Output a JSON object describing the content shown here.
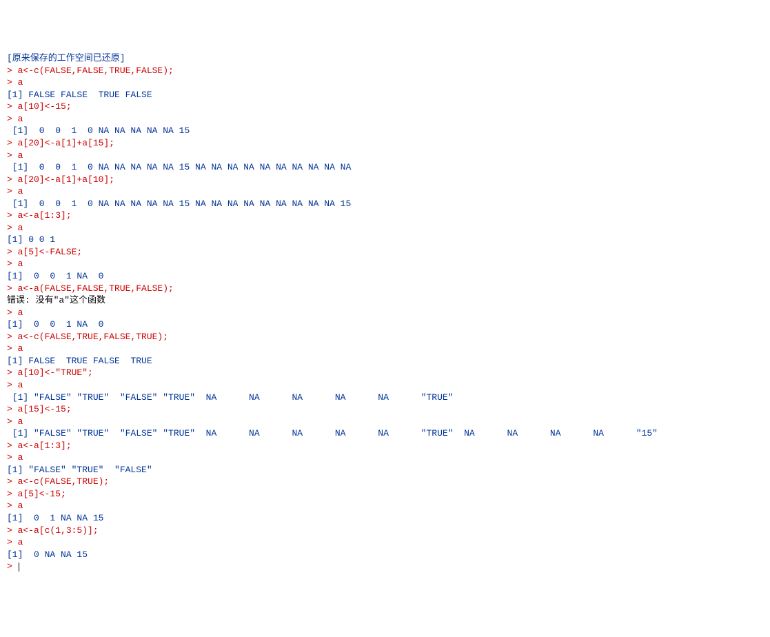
{
  "console": {
    "colors": {
      "message": "#003399",
      "input": "#cc0000",
      "output": "#003399",
      "error": "#000000",
      "background": "#ffffff"
    },
    "fontFamily": "Courier New",
    "fontSize": 13,
    "lines": [
      {
        "cls": "msg",
        "text": "[原来保存的工作空间已还原]"
      },
      {
        "cls": "msg",
        "text": ""
      },
      {
        "cls": "inp",
        "text": "> a<-c(FALSE,FALSE,TRUE,FALSE);"
      },
      {
        "cls": "inp",
        "text": "> a"
      },
      {
        "cls": "out",
        "text": "[1] FALSE FALSE  TRUE FALSE"
      },
      {
        "cls": "inp",
        "text": "> a[10]<-15;"
      },
      {
        "cls": "inp",
        "text": "> a"
      },
      {
        "cls": "out",
        "text": " [1]  0  0  1  0 NA NA NA NA NA 15"
      },
      {
        "cls": "inp",
        "text": "> a[20]<-a[1]+a[15];"
      },
      {
        "cls": "inp",
        "text": "> a"
      },
      {
        "cls": "out",
        "text": " [1]  0  0  1  0 NA NA NA NA NA 15 NA NA NA NA NA NA NA NA NA NA"
      },
      {
        "cls": "inp",
        "text": "> a[20]<-a[1]+a[10];"
      },
      {
        "cls": "inp",
        "text": "> a"
      },
      {
        "cls": "out",
        "text": " [1]  0  0  1  0 NA NA NA NA NA 15 NA NA NA NA NA NA NA NA NA 15"
      },
      {
        "cls": "inp",
        "text": "> a<-a[1:3];"
      },
      {
        "cls": "inp",
        "text": "> a"
      },
      {
        "cls": "out",
        "text": "[1] 0 0 1"
      },
      {
        "cls": "inp",
        "text": "> a[5]<-FALSE;"
      },
      {
        "cls": "inp",
        "text": "> a"
      },
      {
        "cls": "out",
        "text": "[1]  0  0  1 NA  0"
      },
      {
        "cls": "inp",
        "text": "> a<-a(FALSE,FALSE,TRUE,FALSE);"
      },
      {
        "cls": "err",
        "text": "错误: 没有\"a\"这个函数"
      },
      {
        "cls": "inp",
        "text": "> a"
      },
      {
        "cls": "out",
        "text": "[1]  0  0  1 NA  0"
      },
      {
        "cls": "inp",
        "text": "> a<-c(FALSE,TRUE,FALSE,TRUE);"
      },
      {
        "cls": "inp",
        "text": "> a"
      },
      {
        "cls": "out",
        "text": "[1] FALSE  TRUE FALSE  TRUE"
      },
      {
        "cls": "inp",
        "text": "> a[10]<-\"TRUE\";"
      },
      {
        "cls": "inp",
        "text": "> a"
      },
      {
        "cls": "out",
        "text": " [1] \"FALSE\" \"TRUE\"  \"FALSE\" \"TRUE\"  NA      NA      NA      NA      NA      \"TRUE\" "
      },
      {
        "cls": "inp",
        "text": "> a[15]<-15;"
      },
      {
        "cls": "inp",
        "text": "> a"
      },
      {
        "cls": "out",
        "text": " [1] \"FALSE\" \"TRUE\"  \"FALSE\" \"TRUE\"  NA      NA      NA      NA      NA      \"TRUE\"  NA      NA      NA      NA      \"15\"   "
      },
      {
        "cls": "inp",
        "text": "> a<-a[1:3];"
      },
      {
        "cls": "inp",
        "text": "> a"
      },
      {
        "cls": "out",
        "text": "[1] \"FALSE\" \"TRUE\"  \"FALSE\""
      },
      {
        "cls": "inp",
        "text": "> a<-c(FALSE,TRUE);"
      },
      {
        "cls": "inp",
        "text": "> a[5]<-15;"
      },
      {
        "cls": "inp",
        "text": "> a"
      },
      {
        "cls": "out",
        "text": "[1]  0  1 NA NA 15"
      },
      {
        "cls": "inp",
        "text": "> a<-a[c(1,3:5)];"
      },
      {
        "cls": "inp",
        "text": "> a"
      },
      {
        "cls": "out",
        "text": "[1]  0 NA NA 15"
      }
    ],
    "prompt": "> "
  }
}
